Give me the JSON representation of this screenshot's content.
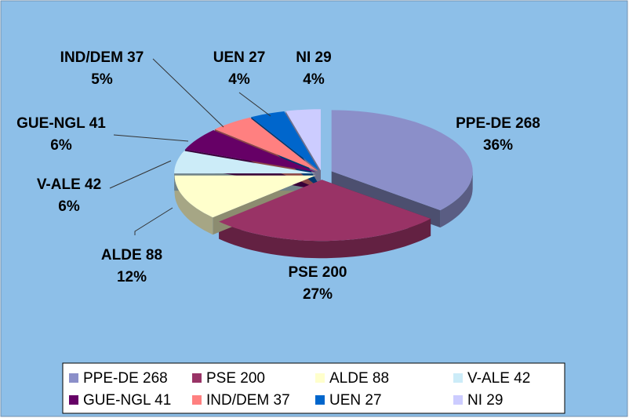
{
  "chart_data": {
    "type": "pie",
    "categories": [
      "PPE-DE 268",
      "PSE 200",
      "ALDE 88",
      "V-ALE 42",
      "GUE-NGL 41",
      "IND/DEM 37",
      "UEN 27",
      "NI 29"
    ],
    "values": [
      36,
      27,
      12,
      6,
      6,
      5,
      4,
      4
    ],
    "value_labels": [
      "36%",
      "27%",
      "12%",
      "6%",
      "6%",
      "5%",
      "4%",
      "4%"
    ],
    "colors": [
      "#8b8fc9",
      "#993366",
      "#ffffcc",
      "#ccecf8",
      "#660066",
      "#ff8080",
      "#0066cc",
      "#ccccff"
    ],
    "legend": "bottom"
  }
}
